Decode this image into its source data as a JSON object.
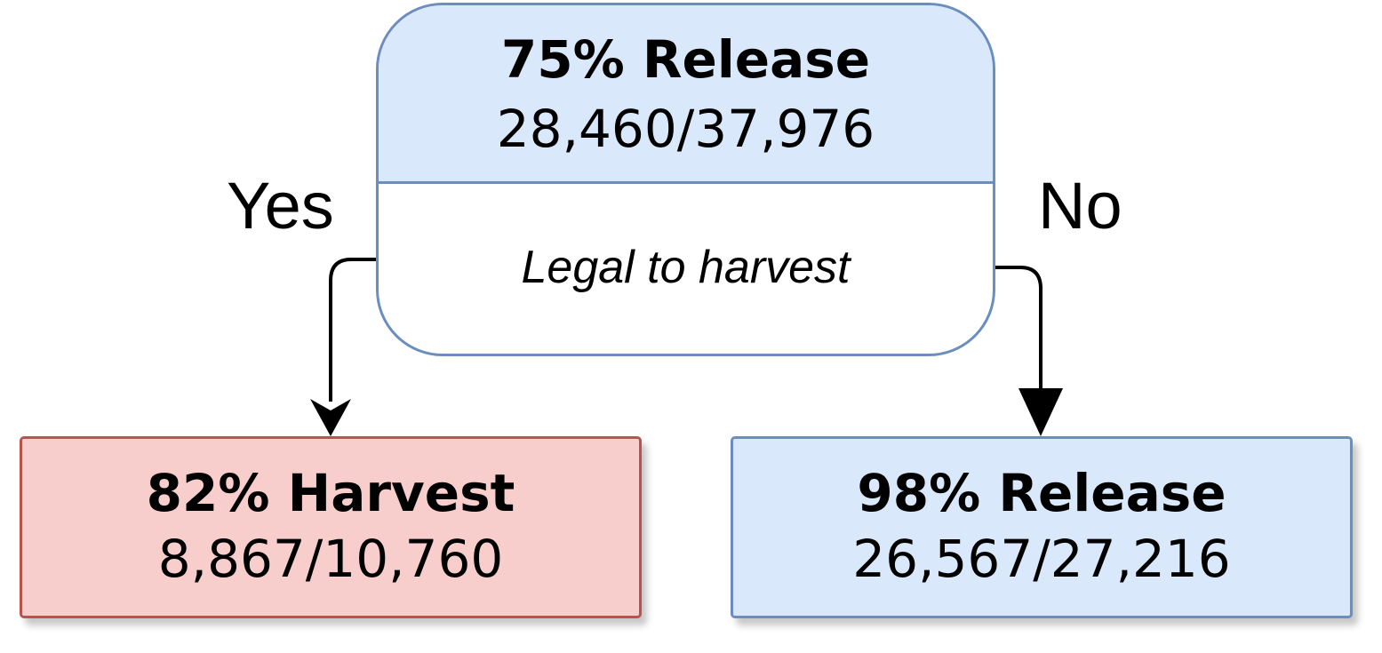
{
  "root": {
    "title": "75% Release",
    "count": "28,460/37,976",
    "condition": "Legal to harvest"
  },
  "edges": {
    "yes": "Yes",
    "no": "No"
  },
  "leaves": {
    "left": {
      "title": "82% Harvest",
      "count": "8,867/10,760"
    },
    "right": {
      "title": "98% Release",
      "count": "26,567/27,216"
    }
  },
  "colors": {
    "release_fill": "#dae8fc",
    "release_border": "#6c8ebf",
    "harvest_fill": "#f8cecc",
    "harvest_border": "#b85450",
    "connector": "#000000"
  }
}
